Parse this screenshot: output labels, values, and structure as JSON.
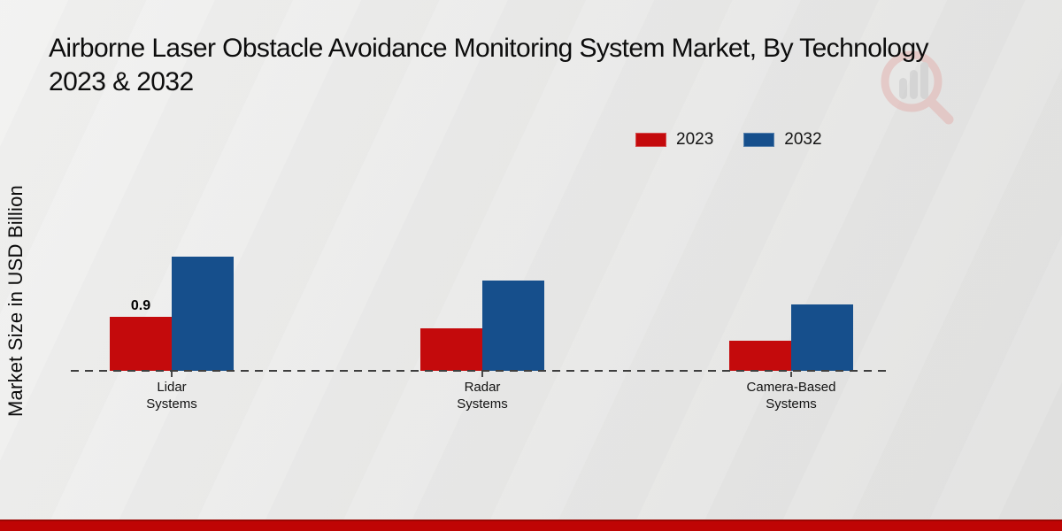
{
  "title": {
    "line1": "Airborne Laser Obstacle Avoidance Monitoring System Market, By Technology",
    "line2": "2023 & 2032"
  },
  "legend": {
    "items": [
      {
        "label": "2023",
        "color": "#c40a0c"
      },
      {
        "label": "2032",
        "color": "#164f8c"
      }
    ]
  },
  "watermark_icon": "magnifier-bar-chart-logo",
  "chart_data": {
    "type": "bar",
    "title": "Airborne Laser Obstacle Avoidance Monitoring System Market, By Technology 2023 & 2032",
    "ylabel": "Market Size in USD Billion",
    "xlabel": "",
    "categories": [
      "Lidar Systems",
      "Radar Systems",
      "Camera-Based Systems"
    ],
    "category_lines": [
      [
        "Lidar",
        "Systems"
      ],
      [
        "Radar",
        "Systems"
      ],
      [
        "Camera-Based",
        "Systems"
      ]
    ],
    "series": [
      {
        "name": "2023",
        "color": "#c40a0c",
        "values": [
          0.9,
          0.7,
          0.5
        ]
      },
      {
        "name": "2032",
        "color": "#164f8c",
        "values": [
          1.9,
          1.5,
          1.1
        ]
      }
    ],
    "annotations": [
      {
        "series": "2023",
        "category": "Lidar Systems",
        "text": "0.9"
      }
    ],
    "ylim": [
      0,
      2.4
    ],
    "grid": false,
    "legend_position": "top-right",
    "baseline_style": "dashed",
    "bottom_band_color": "#bf0504"
  }
}
